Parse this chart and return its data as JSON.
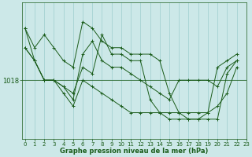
{
  "background_color": "#cce8e8",
  "grid_color": "#9ecece",
  "line_color": "#1a5c1a",
  "xlabel": "Graphe pression niveau de la mer (hPa)",
  "x_ticks": [
    0,
    1,
    2,
    3,
    4,
    5,
    6,
    7,
    8,
    9,
    10,
    11,
    12,
    13,
    14,
    15,
    16,
    17,
    18,
    19,
    20,
    21,
    22,
    23
  ],
  "y_ref": 1018,
  "y_label": "1018",
  "series": [
    [
      1026,
      1021,
      1018,
      1018,
      1016,
      1014,
      1018,
      1017,
      1016,
      1015,
      1014,
      1013,
      1013,
      1013,
      1013,
      1013,
      1013,
      1012,
      1012,
      1012,
      1012,
      1019,
      1021
    ],
    [
      1023,
      1021,
      1018,
      1018,
      1017,
      1015,
      1022,
      1024,
      1021,
      1020,
      1020,
      1019,
      1018,
      1017,
      1016,
      1015,
      1018,
      1018,
      1018,
      1018,
      1017,
      1020,
      1021
    ],
    [
      1026,
      1023,
      1025,
      1023,
      1021,
      1020,
      1027,
      1026,
      1024,
      1023,
      1023,
      1022,
      1022,
      1022,
      1021,
      1016,
      1013,
      1013,
      1013,
      1013,
      1014,
      1016,
      1020
    ],
    [
      1023,
      1021,
      1018,
      1018,
      1017,
      1016,
      1020,
      1019,
      1025,
      1022,
      1022,
      1021,
      1021,
      1015,
      1013,
      1012,
      1012,
      1012,
      1012,
      1013,
      1020,
      1021,
      1022
    ]
  ],
  "ylim_min": 1009,
  "ylim_max": 1030,
  "xlim_min": -0.3,
  "xlim_max": 22.3,
  "figsize": [
    3.2,
    2.0
  ],
  "dpi": 100,
  "tick_fontsize": 5,
  "label_fontsize": 6,
  "linewidth": 0.7,
  "markersize": 2.5
}
